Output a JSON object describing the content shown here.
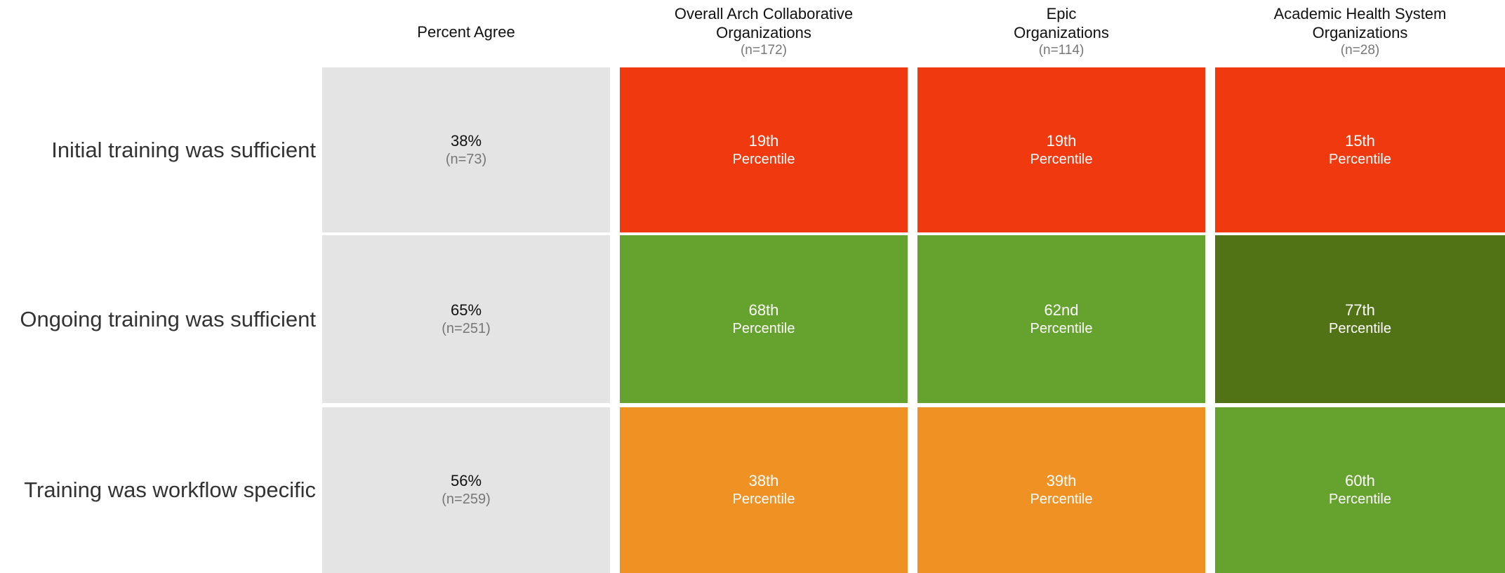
{
  "columns": [
    {
      "lines": [
        "Percent Agree"
      ]
    },
    {
      "lines": [
        "Overall Arch Collaborative",
        "Organizations"
      ],
      "n": "(n=172)"
    },
    {
      "lines": [
        "Epic",
        "Organizations"
      ],
      "n": "(n=114)"
    },
    {
      "lines": [
        "Academic Health System",
        "Organizations"
      ],
      "n": "(n=28)"
    }
  ],
  "rows": [
    {
      "label": "Initial training was sufficient",
      "cells": [
        {
          "text": "38%",
          "n": "(n=73)",
          "color": "#e4e4e4"
        },
        {
          "text": "19th",
          "sub": "Percentile",
          "color": "#f0390f"
        },
        {
          "text": "19th",
          "sub": "Percentile",
          "color": "#f0390f"
        },
        {
          "text": "15th",
          "sub": "Percentile",
          "color": "#f0390f"
        }
      ]
    },
    {
      "label": "Ongoing training was sufficient",
      "cells": [
        {
          "text": "65%",
          "n": "(n=251)",
          "color": "#e4e4e4"
        },
        {
          "text": "68th",
          "sub": "Percentile",
          "color": "#66a22e"
        },
        {
          "text": "62nd",
          "sub": "Percentile",
          "color": "#66a22e"
        },
        {
          "text": "77th",
          "sub": "Percentile",
          "color": "#527315"
        }
      ]
    },
    {
      "label": "Training was workflow specific",
      "cells": [
        {
          "text": "56%",
          "n": "(n=259)",
          "color": "#e4e4e4"
        },
        {
          "text": "38th",
          "sub": "Percentile",
          "color": "#ef9123"
        },
        {
          "text": "39th",
          "sub": "Percentile",
          "color": "#ef9123"
        },
        {
          "text": "60th",
          "sub": "Percentile",
          "color": "#66a22e"
        }
      ]
    }
  ]
}
